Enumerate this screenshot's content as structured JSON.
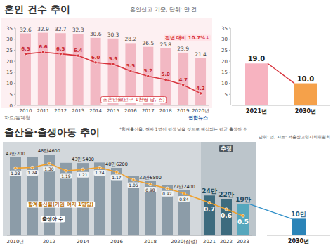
{
  "chart_data": [
    {
      "type": "bar",
      "title": "혼인 건수 추이",
      "subtitle": "혼인신고 기준, 단위: 만 건",
      "categories": [
        "2010",
        "2011",
        "2012",
        "2013",
        "2014",
        "2015",
        "2016",
        "2017",
        "2018",
        "2019",
        "2020년"
      ],
      "series": [
        {
          "type": "bar",
          "color": "#f2b8c3",
          "values": [
            32.6,
            32.9,
            32.7,
            32.3,
            30.6,
            30.3,
            28.2,
            26.5,
            25.8,
            23.9,
            21.4
          ]
        },
        {
          "name": "조혼인율(인구 1천명 당, 건)",
          "type": "line",
          "axis": "y2",
          "color": "#d8343d",
          "marker": "circle",
          "values": [
            6.5,
            6.6,
            6.5,
            6.4,
            6.0,
            5.9,
            5.5,
            5.2,
            5.0,
            4.7,
            4.2
          ],
          "value_labels": [
            "6.5",
            "6.6",
            "6.5",
            "6.4",
            "6.0",
            "5.9",
            "5.5",
            "5.2",
            "5.0",
            "4.7",
            "4.2"
          ]
        }
      ],
      "ylim": [
        0,
        35
      ],
      "yticks": [
        0,
        5,
        10,
        15,
        20,
        25,
        30,
        35
      ],
      "y2lim": [
        3.5,
        8
      ],
      "y2ticks": [],
      "grid": false,
      "data_labels": true,
      "annotations": [
        "전년 대비 10.7%↓",
        "자료/통계청",
        "연합뉴스"
      ]
    },
    {
      "type": "bar",
      "categories": [
        "2021년",
        "2030년"
      ],
      "values": [
        19.0,
        10.0
      ],
      "value_labels": [
        "19.0",
        "10.0"
      ],
      "colors": [
        "#f7b3c0",
        "#f5a14a"
      ],
      "ylim": [
        0,
        35
      ],
      "yticks": [
        5,
        10,
        15,
        20,
        25,
        30,
        35
      ],
      "grid": false,
      "data_labels": true
    },
    {
      "type": "bar",
      "title": "출산율·출생아동 추이",
      "subtitle": "*합계출산율: 여자 1명이 평생 낳을 것으로 예상되는 평균 출생아 수",
      "categories": [
        "2010년",
        null,
        "2012",
        null,
        "2014",
        null,
        "2016",
        null,
        "2018",
        null,
        "2020(잠정)",
        "2021",
        "2022",
        "2023"
      ],
      "series": [
        {
          "name": "출생아 수",
          "type": "bar",
          "colors": [
            "#8c9ca8",
            "#8c9ca8",
            "#8c9ca8",
            "#8c9ca8",
            "#8c9ca8",
            "#8c9ca8",
            "#8c9ca8",
            "#8c9ca8",
            "#8c9ca8",
            "#8c9ca8",
            "#8c9ca8",
            "#3d6b7e",
            "#3d6b7e",
            "#56a7bd"
          ],
          "values": [
            470200,
            471300,
            484600,
            436500,
            435400,
            438400,
            406200,
            357800,
            326800,
            302700,
            272400,
            240000,
            220000,
            190000
          ],
          "value_labels": [
            "47만200",
            null,
            "48만4600",
            null,
            "43만5400",
            null,
            "40만6200",
            null,
            "32만6800",
            null,
            "27만2400",
            "24만",
            "22만",
            "19만"
          ]
        },
        {
          "name": "합계출산율(가임 여자 1명당)",
          "type": "line",
          "axis": "y2",
          "color": "#f0a02c",
          "marker": "circle",
          "values": [
            1.23,
            1.24,
            1.3,
            1.19,
            1.21,
            1.24,
            1.17,
            1.05,
            0.98,
            0.92,
            0.84,
            0.7,
            0.6,
            0.5
          ],
          "value_labels": [
            "1.23",
            "1.24",
            "1.30",
            "1.19",
            "1.21",
            "1.24",
            "1.17",
            "1.05",
            "0.98",
            "0.92",
            "0.84",
            "0.7",
            "0.6",
            "0.5"
          ]
        }
      ],
      "ylim": [
        0,
        550000
      ],
      "yticks": [],
      "y2lim": [
        0.2,
        1.6
      ],
      "y2ticks": [],
      "tick_labels": "x",
      "grid": false,
      "data_labels": true,
      "annotations": [
        "단위: 명, 자료: 저출산고령사회위원회",
        "추정"
      ]
    },
    {
      "type": "bar",
      "categories": [
        "2030년"
      ],
      "values": [
        100000
      ],
      "value_labels": [
        "10만"
      ],
      "color": "#2a84b8",
      "ylim": [
        0,
        550000
      ],
      "yticks": [],
      "tick_labels": "x",
      "grid": false,
      "data_labels": true
    }
  ]
}
